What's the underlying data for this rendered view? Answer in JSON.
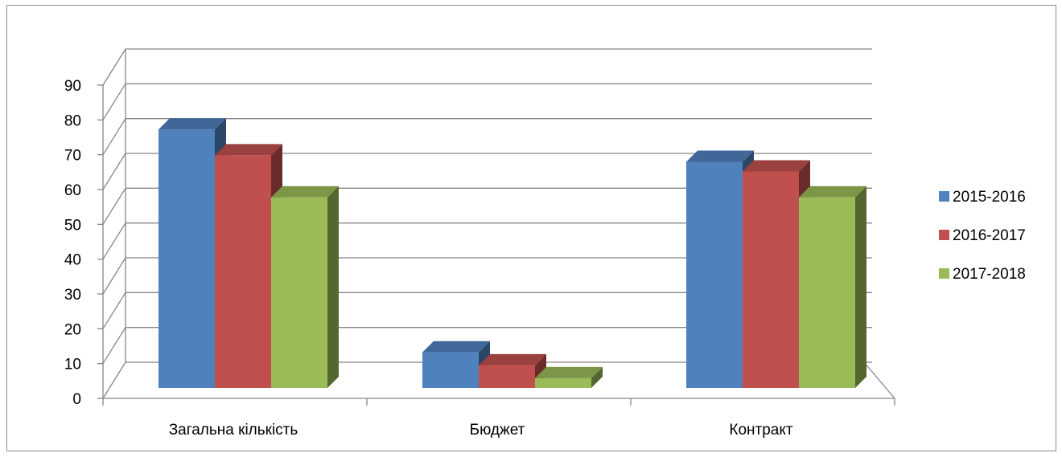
{
  "chart_data": {
    "type": "bar",
    "title": "",
    "xlabel": "",
    "ylabel": "",
    "ylim": [
      0,
      90
    ],
    "yticks": [
      0,
      10,
      20,
      30,
      40,
      50,
      60,
      70,
      80,
      90
    ],
    "categories": [
      "Загальна кількість",
      "Бюджет",
      "Контракт"
    ],
    "series": [
      {
        "name": "2015-2016",
        "color": "#4f81bd",
        "values": [
          80,
          11,
          70
        ]
      },
      {
        "name": "2016-2017",
        "color": "#c0504d",
        "values": [
          72,
          7,
          67
        ]
      },
      {
        "name": "2017-2018",
        "color": "#9bbb59",
        "values": [
          59,
          3,
          59
        ]
      }
    ],
    "grid": true,
    "legend_position": "right",
    "style": "3d-clustered-column"
  }
}
